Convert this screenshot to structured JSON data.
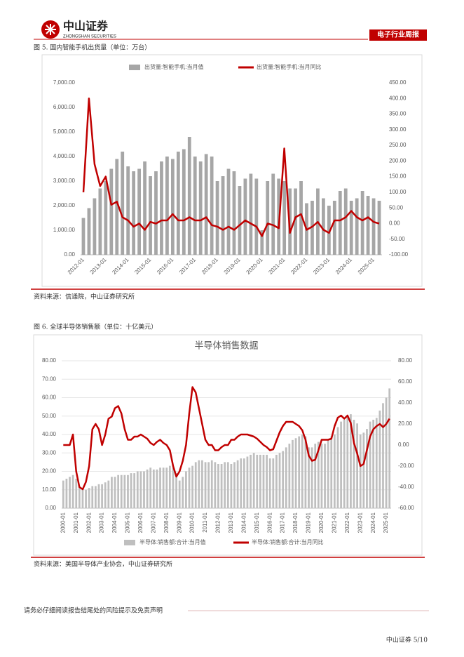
{
  "header": {
    "logo": "中山证券",
    "logo_en": "ZHONGSHAN SECURITIES",
    "tag": "电子行业周报"
  },
  "figures": [
    {
      "caption": "图 5. 国内智能手机出货量（单位：万台）",
      "source": "资料来源：信通院，中山证券研究所"
    },
    {
      "caption": "图 6. 全球半导体销售额（单位：十亿美元）",
      "source": "资料来源：美国半导体产业协会，中山证券研究所"
    }
  ],
  "footer": {
    "disclaimer": "请务必仔细阅读报告结尾处的风险提示及免责声明",
    "page": "中山证券 5/10"
  },
  "chart_data": [
    {
      "type": "bar-line",
      "title": null,
      "categories": [
        "2012-01",
        null,
        null,
        null,
        "2013-01",
        null,
        null,
        null,
        "2014-01",
        null,
        null,
        null,
        "2015-01",
        null,
        null,
        null,
        "2016-01",
        null,
        null,
        null,
        "2017-01",
        null,
        null,
        null,
        "2018-01",
        null,
        null,
        null,
        "2019-01",
        null,
        null,
        null,
        "2020-01",
        null,
        null,
        null,
        "2021-01",
        null,
        null,
        null,
        "2022-01",
        null,
        null,
        null,
        "2023-01",
        null,
        null,
        null,
        "2024-01",
        null,
        null,
        null,
        "2025-01",
        null
      ],
      "series": [
        {
          "name": "出货量:智能手机:当月值",
          "color": "#a6a6a6",
          "values": [
            1500,
            1900,
            2300,
            2700,
            3000,
            3500,
            3900,
            4200,
            3600,
            3400,
            3500,
            3800,
            3200,
            3400,
            3800,
            4000,
            3900,
            4200,
            4300,
            4800,
            4000,
            3800,
            4100,
            4000,
            3000,
            3200,
            3500,
            3400,
            2800,
            3100,
            3300,
            3100,
            1000,
            3000,
            3300,
            3100,
            3000,
            2700,
            2700,
            3000,
            2100,
            2200,
            2700,
            2300,
            2000,
            2200,
            2600,
            2700,
            2200,
            2300,
            2600,
            2400,
            2300,
            2200
          ]
        },
        {
          "name": "出货量:智能手机:当月同比",
          "color": "#c00000",
          "axis": "y2",
          "values": [
            100,
            400,
            190,
            120,
            150,
            60,
            70,
            20,
            10,
            -10,
            0,
            -20,
            5,
            0,
            10,
            10,
            30,
            10,
            10,
            20,
            10,
            10,
            20,
            -5,
            -10,
            -20,
            -10,
            -20,
            -5,
            10,
            0,
            -10,
            -40,
            0,
            -5,
            -15,
            240,
            -30,
            20,
            30,
            -20,
            -10,
            5,
            -20,
            -30,
            10,
            10,
            20,
            40,
            20,
            10,
            20,
            5,
            0
          ]
        }
      ],
      "ylim": [
        0,
        7000
      ],
      "yticks": [
        {
          "value": 0,
          "label": "0.00"
        },
        {
          "value": 1000,
          "label": "1,000.00"
        },
        {
          "value": 2000,
          "label": "2,000.00"
        },
        {
          "value": 3000,
          "label": "3,000.00"
        },
        {
          "value": 4000,
          "label": "4,000.00"
        },
        {
          "value": 5000,
          "label": "5,000.00"
        },
        {
          "value": 6000,
          "label": "6,000.00"
        },
        {
          "value": 7000,
          "label": "7,000.00"
        }
      ],
      "y2lim": [
        -100,
        450
      ],
      "y2ticks": [
        {
          "value": -100,
          "label": "-100.00"
        },
        {
          "value": -50,
          "label": "-50.00"
        },
        {
          "value": 0,
          "label": "0.00"
        },
        {
          "value": 50,
          "label": "50.00"
        },
        {
          "value": 100,
          "label": "100.00"
        },
        {
          "value": 150,
          "label": "150.00"
        },
        {
          "value": 200,
          "label": "200.00"
        },
        {
          "value": 250,
          "label": "250.00"
        },
        {
          "value": 300,
          "label": "300.00"
        },
        {
          "value": 350,
          "label": "350.00"
        },
        {
          "value": 400,
          "label": "400.00"
        },
        {
          "value": 450,
          "label": "450.00"
        }
      ],
      "legend": "top"
    },
    {
      "type": "bar-line",
      "title": "半导体销售数据",
      "categories": [
        "2000-01",
        null,
        null,
        null,
        "2001-01",
        null,
        null,
        null,
        "2002-01",
        null,
        null,
        null,
        "2003-01",
        null,
        null,
        null,
        "2004-01",
        null,
        null,
        null,
        "2005-01",
        null,
        null,
        null,
        "2006-01",
        null,
        null,
        null,
        "2007-01",
        null,
        null,
        null,
        "2008-01",
        null,
        null,
        null,
        "2009-01",
        null,
        null,
        null,
        "2010-01",
        null,
        null,
        null,
        "2011-01",
        null,
        null,
        null,
        "2012-01",
        null,
        null,
        null,
        "2013-01",
        null,
        null,
        null,
        "2014-01",
        null,
        null,
        null,
        "2015-01",
        null,
        null,
        null,
        "2016-01",
        null,
        null,
        null,
        "2017-01",
        null,
        null,
        null,
        "2018-01",
        null,
        null,
        null,
        "2019-01",
        null,
        null,
        null,
        "2020-01",
        null,
        null,
        null,
        "2021-01",
        null,
        null,
        null,
        "2022-01",
        null,
        null,
        null,
        "2023-01",
        null,
        null,
        null,
        "2024-01",
        null,
        null,
        null,
        "2025-01",
        null
      ],
      "series": [
        {
          "name": "半导体:销售额:合计:当月值",
          "color": "#bfbfbf",
          "values": [
            15,
            16,
            17,
            18,
            16,
            12,
            11,
            10,
            11,
            12,
            12,
            13,
            13,
            14,
            15,
            17,
            17,
            18,
            18,
            18,
            18,
            19,
            19,
            20,
            20,
            20,
            21,
            22,
            21,
            21,
            22,
            22,
            22,
            23,
            22,
            19,
            15,
            17,
            20,
            22,
            23,
            25,
            26,
            26,
            25,
            25,
            26,
            25,
            24,
            24,
            25,
            25,
            24,
            25,
            26,
            27,
            27,
            28,
            29,
            30,
            29,
            29,
            29,
            29,
            27,
            27,
            29,
            30,
            31,
            33,
            35,
            37,
            38,
            39,
            40,
            39,
            33,
            33,
            35,
            36,
            35,
            35,
            37,
            39,
            40,
            44,
            47,
            48,
            50,
            51,
            48,
            46,
            40,
            41,
            43,
            47,
            48,
            49,
            53,
            57,
            60,
            65
          ]
        },
        {
          "name": "半导体:销售额:合计:当月同比",
          "color": "#c00000",
          "axis": "y2",
          "values": [
            0,
            0,
            0,
            10,
            -25,
            -40,
            -42,
            -35,
            -20,
            15,
            20,
            15,
            0,
            10,
            25,
            27,
            35,
            37,
            30,
            15,
            5,
            5,
            8,
            8,
            10,
            8,
            6,
            2,
            0,
            3,
            5,
            2,
            0,
            -5,
            -20,
            -30,
            -25,
            -15,
            0,
            30,
            55,
            50,
            35,
            20,
            5,
            0,
            0,
            -5,
            -5,
            -2,
            0,
            0,
            5,
            5,
            8,
            10,
            10,
            10,
            9,
            8,
            6,
            3,
            0,
            -2,
            -5,
            -4,
            4,
            12,
            18,
            22,
            22,
            22,
            20,
            18,
            14,
            5,
            -10,
            -15,
            -14,
            -5,
            5,
            5,
            5,
            6,
            18,
            26,
            28,
            25,
            28,
            21,
            2,
            -8,
            -20,
            -18,
            -5,
            8,
            15,
            18,
            20,
            17,
            20,
            25
          ]
        }
      ],
      "ylim": [
        0,
        80
      ],
      "yticks": [
        {
          "value": 0,
          "label": "0.00"
        },
        {
          "value": 10,
          "label": "10.00"
        },
        {
          "value": 20,
          "label": "20.00"
        },
        {
          "value": 30,
          "label": "30.00"
        },
        {
          "value": 40,
          "label": "40.00"
        },
        {
          "value": 50,
          "label": "50.00"
        },
        {
          "value": 60,
          "label": "60.00"
        },
        {
          "value": 70,
          "label": "70.00"
        },
        {
          "value": 80,
          "label": "80.00"
        }
      ],
      "y2lim": [
        -60,
        80
      ],
      "y2ticks": [
        {
          "value": -60,
          "label": "-60.00"
        },
        {
          "value": -40,
          "label": "-40.00"
        },
        {
          "value": -20,
          "label": "-20.00"
        },
        {
          "value": 0,
          "label": "0.00"
        },
        {
          "value": 20,
          "label": "20.00"
        },
        {
          "value": 40,
          "label": "40.00"
        },
        {
          "value": 60,
          "label": "60.00"
        },
        {
          "value": 80,
          "label": "80.00"
        }
      ],
      "legend": "bottom"
    }
  ]
}
